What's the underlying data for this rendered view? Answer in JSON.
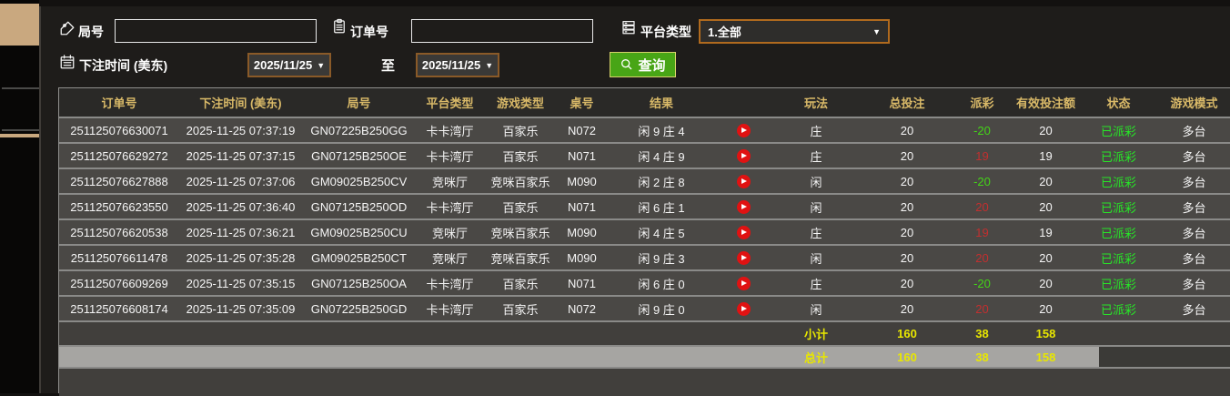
{
  "filters": {
    "round_label": "局号",
    "round_value": "",
    "order_label": "订单号",
    "order_value": "",
    "platform_label": "平台类型",
    "platform_value": "1.全部",
    "bet_time_label": "下注时间 (美东)",
    "date_from": "2025/11/25",
    "to_label": "至",
    "date_to": "2025/11/25",
    "search_label": "查询"
  },
  "table": {
    "headers": [
      "订单号",
      "下注时间 (美东)",
      "局号",
      "平台类型",
      "游戏类型",
      "桌号",
      "结果",
      "玩法",
      "总投注",
      "派彩",
      "有效投注额",
      "状态",
      "游戏模式"
    ],
    "rows": [
      {
        "order": "251125076630071",
        "time": "2025-11-25 07:37:19",
        "round": "GN07225B250GG",
        "platform": "卡卡湾厅",
        "game": "百家乐",
        "table_no": "N072",
        "result": "闲 9 庄 4",
        "play": "庄",
        "total_bet": "20",
        "payout": "-20",
        "valid_bet": "20",
        "status": "已派彩",
        "mode": "多台"
      },
      {
        "order": "251125076629272",
        "time": "2025-11-25 07:37:15",
        "round": "GN07125B250OE",
        "platform": "卡卡湾厅",
        "game": "百家乐",
        "table_no": "N071",
        "result": "闲 4 庄 9",
        "play": "庄",
        "total_bet": "20",
        "payout": "19",
        "valid_bet": "19",
        "status": "已派彩",
        "mode": "多台"
      },
      {
        "order": "251125076627888",
        "time": "2025-11-25 07:37:06",
        "round": "GM09025B250CV",
        "platform": "竞咪厅",
        "game": "竞咪百家乐",
        "table_no": "M090",
        "result": "闲 2 庄 8",
        "play": "闲",
        "total_bet": "20",
        "payout": "-20",
        "valid_bet": "20",
        "status": "已派彩",
        "mode": "多台"
      },
      {
        "order": "251125076623550",
        "time": "2025-11-25 07:36:40",
        "round": "GN07125B250OD",
        "platform": "卡卡湾厅",
        "game": "百家乐",
        "table_no": "N071",
        "result": "闲 6 庄 1",
        "play": "闲",
        "total_bet": "20",
        "payout": "20",
        "valid_bet": "20",
        "status": "已派彩",
        "mode": "多台"
      },
      {
        "order": "251125076620538",
        "time": "2025-11-25 07:36:21",
        "round": "GM09025B250CU",
        "platform": "竞咪厅",
        "game": "竞咪百家乐",
        "table_no": "M090",
        "result": "闲 4 庄 5",
        "play": "庄",
        "total_bet": "20",
        "payout": "19",
        "valid_bet": "19",
        "status": "已派彩",
        "mode": "多台"
      },
      {
        "order": "251125076611478",
        "time": "2025-11-25 07:35:28",
        "round": "GM09025B250CT",
        "platform": "竞咪厅",
        "game": "竞咪百家乐",
        "table_no": "M090",
        "result": "闲 9 庄 3",
        "play": "闲",
        "total_bet": "20",
        "payout": "20",
        "valid_bet": "20",
        "status": "已派彩",
        "mode": "多台"
      },
      {
        "order": "251125076609269",
        "time": "2025-11-25 07:35:15",
        "round": "GN07125B250OA",
        "platform": "卡卡湾厅",
        "game": "百家乐",
        "table_no": "N071",
        "result": "闲 6 庄 0",
        "play": "庄",
        "total_bet": "20",
        "payout": "-20",
        "valid_bet": "20",
        "status": "已派彩",
        "mode": "多台"
      },
      {
        "order": "251125076608174",
        "time": "2025-11-25 07:35:09",
        "round": "GN07225B250GD",
        "platform": "卡卡湾厅",
        "game": "百家乐",
        "table_no": "N072",
        "result": "闲 9 庄 0",
        "play": "闲",
        "total_bet": "20",
        "payout": "20",
        "valid_bet": "20",
        "status": "已派彩",
        "mode": "多台"
      }
    ],
    "subtotal": {
      "label": "小计",
      "total_bet": "160",
      "payout": "38",
      "valid_bet": "158"
    },
    "total": {
      "label": "总计",
      "total_bet": "160",
      "payout": "38",
      "valid_bet": "158"
    }
  },
  "colors": {
    "accent_gold": "#d9b968",
    "payout_negative_green": "#44d517",
    "payout_positive_red": "#c22f2f",
    "status_green": "#27e627",
    "totals_yellow": "#e8e700",
    "button_green": "#48a516",
    "sidebar_tab_tan": "#c9a87f",
    "total_row_gray": "#a6a5a2"
  }
}
